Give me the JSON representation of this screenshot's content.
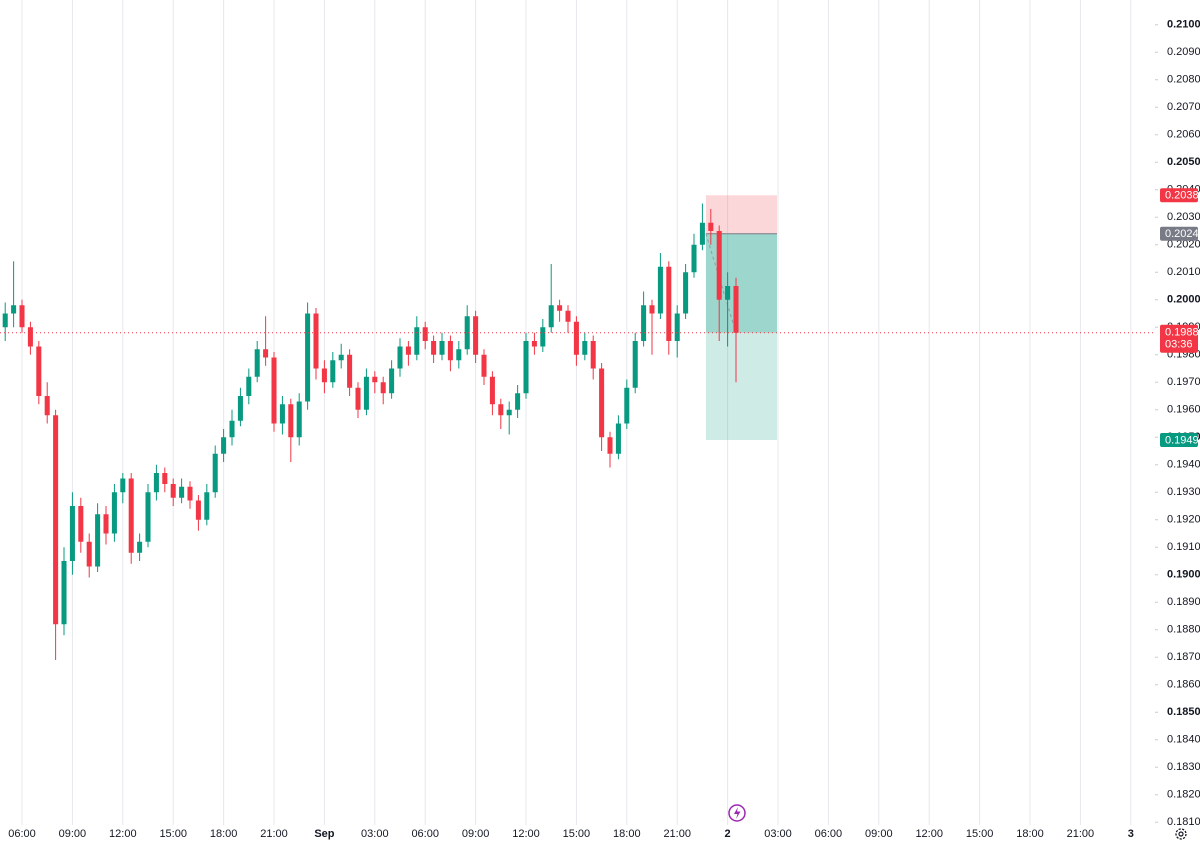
{
  "chart_data": {
    "type": "candlestick",
    "up_color": "#089981",
    "down_color": "#f23645",
    "xlim": [
      4.69,
      73.44
    ],
    "ylim": [
      0.1809,
      0.2109
    ],
    "xticks": [
      {
        "value": 6,
        "label": "06:00"
      },
      {
        "value": 9,
        "label": "09:00"
      },
      {
        "value": 12,
        "label": "12:00"
      },
      {
        "value": 15,
        "label": "15:00"
      },
      {
        "value": 18,
        "label": "18:00"
      },
      {
        "value": 21,
        "label": "21:00"
      },
      {
        "value": 24,
        "label": "Sep"
      },
      {
        "value": 27,
        "label": "03:00"
      },
      {
        "value": 30,
        "label": "06:00"
      },
      {
        "value": 33,
        "label": "09:00"
      },
      {
        "value": 36,
        "label": "12:00"
      },
      {
        "value": 39,
        "label": "15:00"
      },
      {
        "value": 42,
        "label": "18:00"
      },
      {
        "value": 45,
        "label": "21:00"
      },
      {
        "value": 48,
        "label": "2"
      },
      {
        "value": 51,
        "label": "03:00"
      },
      {
        "value": 54,
        "label": "06:00"
      },
      {
        "value": 57,
        "label": "09:00"
      },
      {
        "value": 60,
        "label": "12:00"
      },
      {
        "value": 63,
        "label": "15:00"
      },
      {
        "value": 66,
        "label": "18:00"
      },
      {
        "value": 69,
        "label": "21:00"
      },
      {
        "value": 72,
        "label": "3"
      }
    ],
    "yticks": [
      {
        "value": 0.21,
        "label": "0.2100"
      },
      {
        "value": 0.209,
        "label": "0.2090"
      },
      {
        "value": 0.208,
        "label": "0.2080"
      },
      {
        "value": 0.207,
        "label": "0.2070"
      },
      {
        "value": 0.206,
        "label": "0.2060"
      },
      {
        "value": 0.205,
        "label": "0.2050"
      },
      {
        "value": 0.204,
        "label": "0.2040"
      },
      {
        "value": 0.203,
        "label": "0.2030"
      },
      {
        "value": 0.202,
        "label": "0.2020"
      },
      {
        "value": 0.201,
        "label": "0.2010"
      },
      {
        "value": 0.2,
        "label": "0.2000"
      },
      {
        "value": 0.199,
        "label": "0.1990"
      },
      {
        "value": 0.198,
        "label": "0.1980"
      },
      {
        "value": 0.197,
        "label": "0.1970"
      },
      {
        "value": 0.196,
        "label": "0.1960"
      },
      {
        "value": 0.195,
        "label": "0.1950"
      },
      {
        "value": 0.194,
        "label": "0.1940"
      },
      {
        "value": 0.193,
        "label": "0.1930"
      },
      {
        "value": 0.192,
        "label": "0.1920"
      },
      {
        "value": 0.191,
        "label": "0.1910"
      },
      {
        "value": 0.19,
        "label": "0.1900"
      },
      {
        "value": 0.189,
        "label": "0.1890"
      },
      {
        "value": 0.188,
        "label": "0.1880"
      },
      {
        "value": 0.187,
        "label": "0.1870"
      },
      {
        "value": 0.186,
        "label": "0.1860"
      },
      {
        "value": 0.185,
        "label": "0.1850"
      },
      {
        "value": 0.184,
        "label": "0.1840"
      },
      {
        "value": 0.183,
        "label": "0.1830"
      },
      {
        "value": 0.182,
        "label": "0.1820"
      },
      {
        "value": 0.181,
        "label": "0.1810"
      }
    ],
    "x": [
      5,
      5.5,
      6,
      6.5,
      7,
      7.5,
      8,
      8.5,
      9,
      9.5,
      10,
      10.5,
      11,
      11.5,
      12,
      12.5,
      13,
      13.5,
      14,
      14.5,
      15,
      15.5,
      16,
      16.5,
      17,
      17.5,
      18,
      18.5,
      19,
      19.5,
      20,
      20.5,
      21,
      21.5,
      22,
      22.5,
      23,
      23.5,
      24,
      24.5,
      25,
      25.5,
      26,
      26.5,
      27,
      27.5,
      28,
      28.5,
      29,
      29.5,
      30,
      30.5,
      31,
      31.5,
      32,
      32.5,
      33,
      33.5,
      34,
      34.5,
      35,
      35.5,
      36,
      36.5,
      37,
      37.5,
      38,
      38.5,
      39,
      39.5,
      40,
      40.5,
      41,
      41.5,
      42,
      42.5,
      43,
      43.5,
      44,
      44.5,
      45,
      45.5,
      46,
      46.5,
      47,
      47.5,
      48,
      48.5
    ],
    "open": [
      0.199,
      0.1995,
      0.1998,
      0.199,
      0.1983,
      0.1965,
      0.1958,
      0.1882,
      0.1905,
      0.1925,
      0.1912,
      0.1903,
      0.1922,
      0.1915,
      0.193,
      0.1935,
      0.1908,
      0.1912,
      0.193,
      0.1937,
      0.1933,
      0.1928,
      0.1932,
      0.1927,
      0.192,
      0.193,
      0.1944,
      0.195,
      0.1956,
      0.1965,
      0.1972,
      0.1982,
      0.1979,
      0.1955,
      0.1962,
      0.195,
      0.1963,
      0.1995,
      0.1975,
      0.197,
      0.1978,
      0.198,
      0.1968,
      0.196,
      0.1972,
      0.197,
      0.1966,
      0.1975,
      0.1983,
      0.198,
      0.199,
      0.1985,
      0.198,
      0.1985,
      0.1978,
      0.1982,
      0.1994,
      0.198,
      0.1972,
      0.1962,
      0.1958,
      0.196,
      0.1966,
      0.1985,
      0.1983,
      0.199,
      0.1998,
      0.1996,
      0.1992,
      0.198,
      0.1985,
      0.1975,
      0.195,
      0.1944,
      0.1955,
      0.1968,
      0.1985,
      0.1998,
      0.1995,
      0.2012,
      0.1985,
      0.1995,
      0.201,
      0.202,
      0.2028,
      0.2025,
      0.2,
      0.2005
    ],
    "high": [
      0.1999,
      0.2014,
      0.2,
      0.1992,
      0.1985,
      0.197,
      0.196,
      0.191,
      0.193,
      0.1928,
      0.1915,
      0.1926,
      0.1925,
      0.1933,
      0.1937,
      0.1937,
      0.1915,
      0.1933,
      0.194,
      0.1939,
      0.1935,
      0.1935,
      0.1934,
      0.1929,
      0.1933,
      0.1947,
      0.1953,
      0.196,
      0.1968,
      0.1975,
      0.1985,
      0.1994,
      0.1981,
      0.1965,
      0.1964,
      0.1966,
      0.1999,
      0.1997,
      0.1978,
      0.1981,
      0.1984,
      0.1982,
      0.197,
      0.1975,
      0.1974,
      0.1972,
      0.1978,
      0.1986,
      0.1985,
      0.1994,
      0.1992,
      0.1987,
      0.1988,
      0.1987,
      0.1985,
      0.1998,
      0.1996,
      0.1982,
      0.1974,
      0.1964,
      0.1963,
      0.1969,
      0.1988,
      0.1988,
      0.1993,
      0.2013,
      0.2,
      0.1998,
      0.1994,
      0.1988,
      0.1987,
      0.1977,
      0.1952,
      0.1958,
      0.1971,
      0.1988,
      0.2003,
      0.2,
      0.2017,
      0.2014,
      0.1998,
      0.2013,
      0.2024,
      0.2035,
      0.2033,
      0.2027,
      0.201,
      0.2008
    ],
    "low": [
      0.1985,
      0.199,
      0.1988,
      0.198,
      0.1962,
      0.1955,
      0.1869,
      0.1878,
      0.19,
      0.1908,
      0.1899,
      0.1901,
      0.1911,
      0.1912,
      0.1926,
      0.1904,
      0.1905,
      0.191,
      0.1927,
      0.193,
      0.1925,
      0.1926,
      0.1924,
      0.1916,
      0.1918,
      0.1928,
      0.1941,
      0.1947,
      0.1954,
      0.1962,
      0.197,
      0.1976,
      0.1952,
      0.1951,
      0.1941,
      0.1947,
      0.196,
      0.1971,
      0.1966,
      0.1968,
      0.1975,
      0.1965,
      0.1957,
      0.1958,
      0.1966,
      0.1962,
      0.1964,
      0.1972,
      0.1976,
      0.1978,
      0.1982,
      0.1977,
      0.1978,
      0.1974,
      0.1975,
      0.198,
      0.1977,
      0.1969,
      0.1958,
      0.1953,
      0.1951,
      0.1957,
      0.1964,
      0.198,
      0.1981,
      0.1988,
      0.1992,
      0.1988,
      0.1976,
      0.1978,
      0.1971,
      0.1945,
      0.1939,
      0.1942,
      0.1953,
      0.1966,
      0.1983,
      0.198,
      0.1993,
      0.198,
      0.1979,
      0.1993,
      0.2008,
      0.2018,
      0.202,
      0.1985,
      0.1983,
      0.197
    ],
    "close": [
      0.1995,
      0.1998,
      0.199,
      0.1983,
      0.1965,
      0.1958,
      0.1882,
      0.1905,
      0.1925,
      0.1912,
      0.1903,
      0.1922,
      0.1915,
      0.193,
      0.1935,
      0.1908,
      0.1912,
      0.193,
      0.1937,
      0.1933,
      0.1928,
      0.1932,
      0.1927,
      0.192,
      0.193,
      0.1944,
      0.195,
      0.1956,
      0.1965,
      0.1972,
      0.1982,
      0.1979,
      0.1955,
      0.1962,
      0.195,
      0.1963,
      0.1995,
      0.1975,
      0.197,
      0.1978,
      0.198,
      0.1968,
      0.196,
      0.1972,
      0.197,
      0.1966,
      0.1975,
      0.1983,
      0.198,
      0.199,
      0.1985,
      0.198,
      0.1985,
      0.1978,
      0.1982,
      0.1994,
      0.198,
      0.1972,
      0.1962,
      0.1958,
      0.196,
      0.1966,
      0.1985,
      0.1983,
      0.199,
      0.1998,
      0.1996,
      0.1992,
      0.198,
      0.1985,
      0.1975,
      0.195,
      0.1944,
      0.1955,
      0.1968,
      0.1985,
      0.1998,
      0.1995,
      0.2012,
      0.1985,
      0.1995,
      0.201,
      0.202,
      0.2028,
      0.2025,
      0.2,
      0.2005,
      0.1988
    ],
    "countdown": "03:36",
    "position": {
      "start": 46.71,
      "end": 50.94,
      "stop": 0.2038,
      "entry": 0.2024,
      "target": 0.1949
    }
  }
}
